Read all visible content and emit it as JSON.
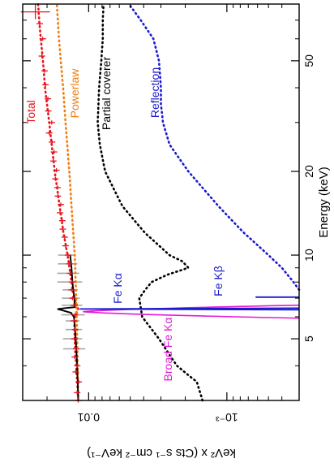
{
  "chart_data": {
    "type": "line",
    "orientation": "rotated-90-clockwise",
    "xlabel": "Energy (keV)",
    "ylabel": "keV² x (Cts s⁻¹ cm⁻² keV⁻¹)",
    "x_scale": "log",
    "y_scale": "log",
    "xlim": [
      3.0,
      80.0
    ],
    "ylim": [
      0.0003,
      0.03
    ],
    "x_ticks": [
      {
        "value": 5,
        "label": "5"
      },
      {
        "value": 10,
        "label": "10"
      },
      {
        "value": 20,
        "label": "20"
      },
      {
        "value": 50,
        "label": "50"
      }
    ],
    "y_ticks": [
      {
        "value": 0.01,
        "label": "0.01"
      },
      {
        "value": 0.001,
        "label": "10⁻³"
      }
    ],
    "series": [
      {
        "name": "Total",
        "color": "#e8141c",
        "style": "dotted",
        "points": [
          [
            3.0,
            0.0119
          ],
          [
            3.5,
            0.0121
          ],
          [
            4.0,
            0.0123
          ],
          [
            4.5,
            0.0125
          ],
          [
            5.0,
            0.0126
          ],
          [
            5.5,
            0.0127
          ],
          [
            6.0,
            0.0126
          ],
          [
            6.2,
            0.0122
          ],
          [
            6.4,
            0.0119
          ],
          [
            7.0,
            0.0127
          ],
          [
            8.0,
            0.0133
          ],
          [
            10.0,
            0.0142
          ],
          [
            12.0,
            0.0152
          ],
          [
            15.0,
            0.0162
          ],
          [
            20.0,
            0.0176
          ],
          [
            30.0,
            0.0193
          ],
          [
            40.0,
            0.0207
          ],
          [
            50.0,
            0.0214
          ],
          [
            60.0,
            0.0222
          ],
          [
            70.0,
            0.0228
          ],
          [
            80.0,
            0.0232
          ]
        ]
      },
      {
        "name": "Powerlaw",
        "color": "#f07f12",
        "style": "dotted",
        "points": [
          [
            3.0,
            0.0119
          ],
          [
            5.0,
            0.0121
          ],
          [
            7.0,
            0.0123
          ],
          [
            10.0,
            0.0126
          ],
          [
            15.0,
            0.0133
          ],
          [
            20.0,
            0.0138
          ],
          [
            30.0,
            0.0147
          ],
          [
            40.0,
            0.0153
          ],
          [
            50.0,
            0.0159
          ],
          [
            60.0,
            0.0164
          ],
          [
            70.0,
            0.0167
          ],
          [
            80.0,
            0.017
          ]
        ]
      },
      {
        "name": "Partial coverer",
        "color": "#000000",
        "style": "dotted",
        "points": [
          [
            3.0,
            0.0015
          ],
          [
            3.5,
            0.00165
          ],
          [
            3.7,
            0.0019
          ],
          [
            4.0,
            0.0023
          ],
          [
            5.0,
            0.0031
          ],
          [
            6.0,
            0.0041
          ],
          [
            7.0,
            0.0043
          ],
          [
            7.5,
            0.0039
          ],
          [
            8.0,
            0.0035
          ],
          [
            8.5,
            0.0027
          ],
          [
            9.0,
            0.0019
          ],
          [
            9.5,
            0.0021
          ],
          [
            10.0,
            0.0026
          ],
          [
            12.0,
            0.0039
          ],
          [
            15.0,
            0.0057
          ],
          [
            20.0,
            0.0076
          ],
          [
            25.0,
            0.0083
          ],
          [
            30.0,
            0.0086
          ],
          [
            40.0,
            0.0084
          ],
          [
            50.0,
            0.0081
          ],
          [
            60.0,
            0.0079
          ],
          [
            70.0,
            0.0079
          ],
          [
            80.0,
            0.0078
          ]
        ]
      },
      {
        "name": "Reflection",
        "color": "#1a1acc",
        "style": "dotted",
        "points": [
          [
            7.5,
            0.0003
          ],
          [
            8.0,
            0.00033
          ],
          [
            9.0,
            0.0004
          ],
          [
            10.0,
            0.0005
          ],
          [
            12.0,
            0.00075
          ],
          [
            15.0,
            0.00115
          ],
          [
            20.0,
            0.0019
          ],
          [
            25.0,
            0.0026
          ],
          [
            30.0,
            0.0029
          ],
          [
            35.0,
            0.003
          ],
          [
            40.0,
            0.003
          ],
          [
            50.0,
            0.0031
          ],
          [
            60.0,
            0.0034
          ],
          [
            70.0,
            0.0042
          ],
          [
            80.0,
            0.0051
          ]
        ]
      }
    ],
    "lines": [
      {
        "name": "Fe Kα",
        "color": "#1a1acc",
        "energy": 6.4,
        "peak": 0.0116
      },
      {
        "name": "Fe Kβ",
        "color": "#1a1acc",
        "energy": 7.06,
        "peak": 0.00062
      },
      {
        "name": "Broad Fe Kα",
        "color": "#e21ad6",
        "energy": 6.3,
        "peak": 0.0049
      }
    ],
    "data_points": [
      [
        3.0,
        0.0119
      ],
      [
        3.2,
        0.0121
      ],
      [
        3.5,
        0.0118
      ],
      [
        3.8,
        0.0124
      ],
      [
        4.0,
        0.0121
      ],
      [
        4.3,
        0.0126
      ],
      [
        4.6,
        0.0123
      ],
      [
        5.0,
        0.0127
      ],
      [
        5.4,
        0.0125
      ],
      [
        5.8,
        0.0128
      ],
      [
        6.1,
        0.0125
      ],
      [
        6.6,
        0.0128
      ],
      [
        7.0,
        0.0131
      ],
      [
        7.5,
        0.0133
      ],
      [
        8.0,
        0.0132
      ],
      [
        8.6,
        0.0136
      ],
      [
        9.3,
        0.0138
      ],
      [
        10.0,
        0.0141
      ],
      [
        10.8,
        0.0147
      ],
      [
        11.6,
        0.0149
      ],
      [
        12.4,
        0.0154
      ],
      [
        13.3,
        0.0155
      ],
      [
        14.2,
        0.0161
      ],
      [
        15.2,
        0.0159
      ],
      [
        16.3,
        0.0167
      ],
      [
        17.5,
        0.0168
      ],
      [
        18.8,
        0.0174
      ],
      [
        20.2,
        0.0171
      ],
      [
        21.8,
        0.018
      ],
      [
        23.5,
        0.0178
      ],
      [
        25.5,
        0.0184
      ],
      [
        27.5,
        0.0193
      ],
      [
        30.0,
        0.0185
      ],
      [
        33.0,
        0.0196
      ],
      [
        36.5,
        0.0197
      ],
      [
        41.0,
        0.0205
      ],
      [
        46.0,
        0.0208
      ],
      [
        52.0,
        0.0218
      ],
      [
        60.0,
        0.0215
      ],
      [
        68.0,
        0.0226
      ],
      [
        75.0,
        0.0243
      ]
    ],
    "data_point_color": "#e8141c",
    "residual_color": "#a8a8a8",
    "model_line_color": "#000000",
    "annotations": [
      {
        "text": "Total",
        "color": "#e8141c"
      },
      {
        "text": "Powerlaw",
        "color": "#f07f12"
      },
      {
        "text": "Partial coverer",
        "color": "#000000"
      },
      {
        "text": "Reflection",
        "color": "#1a1acc"
      },
      {
        "text": "Fe Kα",
        "color": "#1a1acc"
      },
      {
        "text": "Fe Kβ",
        "color": "#1a1acc"
      },
      {
        "text": "Broad Fe Kα",
        "color": "#e21ad6"
      }
    ]
  }
}
